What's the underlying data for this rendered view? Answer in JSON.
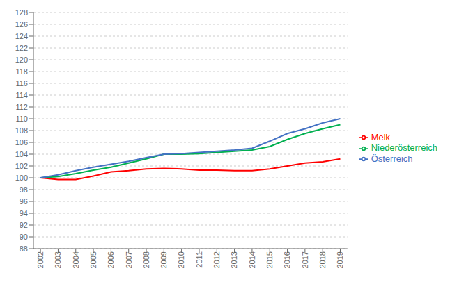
{
  "chart_data": {
    "type": "line",
    "x": [
      2002,
      2003,
      2004,
      2005,
      2006,
      2007,
      2008,
      2009,
      2010,
      2011,
      2012,
      2013,
      2014,
      2015,
      2016,
      2017,
      2018,
      2019
    ],
    "series": [
      {
        "name": "Melk",
        "color": "#ff0000",
        "values": [
          100.0,
          99.7,
          99.7,
          100.3,
          101.0,
          101.2,
          101.5,
          101.6,
          101.5,
          101.3,
          101.3,
          101.2,
          101.2,
          101.5,
          102.0,
          102.5,
          102.7,
          103.2
        ]
      },
      {
        "name": "Niederösterreich",
        "color": "#00b050",
        "values": [
          100.0,
          100.2,
          100.7,
          101.3,
          101.8,
          102.5,
          103.2,
          104.0,
          104.0,
          104.1,
          104.3,
          104.5,
          104.7,
          105.3,
          106.5,
          107.5,
          108.3,
          109.0
        ]
      },
      {
        "name": "Österreich",
        "color": "#4472c4",
        "values": [
          100.0,
          100.5,
          101.2,
          101.8,
          102.3,
          102.8,
          103.4,
          104.0,
          104.1,
          104.3,
          104.5,
          104.7,
          105.0,
          106.2,
          107.5,
          108.3,
          109.3,
          110.0
        ]
      }
    ],
    "xlim": [
      2001.6,
      2019.4
    ],
    "xticks": [
      2002,
      2003,
      2004,
      2005,
      2006,
      2007,
      2008,
      2009,
      2010,
      2011,
      2012,
      2013,
      2014,
      2015,
      2016,
      2017,
      2018,
      2019
    ],
    "ylim": [
      88,
      128
    ],
    "yticks": [
      88,
      90,
      92,
      94,
      96,
      98,
      100,
      102,
      104,
      106,
      108,
      110,
      112,
      114,
      116,
      118,
      120,
      122,
      124,
      126,
      128
    ],
    "grid": "y",
    "legend": "right"
  }
}
